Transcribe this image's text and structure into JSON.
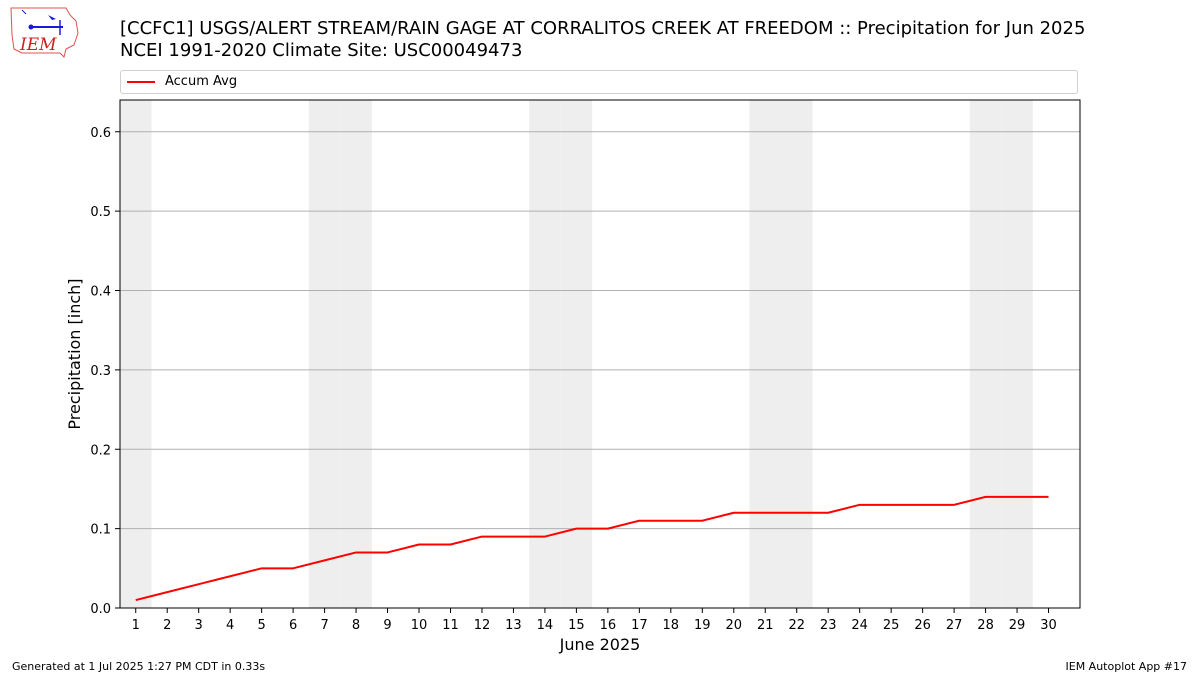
{
  "header": {
    "title_line1": "[CCFC1] USGS/ALERT STREAM/RAIN GAGE  AT CORRALITOS CREEK AT FREEDOM :: Precipitation for Jun 2025",
    "title_line2": "NCEI 1991-2020 Climate Site: USC00049473"
  },
  "logo": {
    "text": "IEM",
    "icon": "iem-logo-icon"
  },
  "footer": {
    "generated": "Generated at 1 Jul 2025 1:27 PM CDT in 0.33s",
    "app": "IEM Autoplot App #17"
  },
  "colors": {
    "line": "#ff0000",
    "weekend_band": "#eeeeee",
    "grid": "#b0b0b0"
  },
  "chart_data": {
    "type": "line",
    "title": "[CCFC1] USGS/ALERT STREAM/RAIN GAGE  AT CORRALITOS CREEK AT FREEDOM :: Precipitation for Jun 2025",
    "subtitle": "NCEI 1991-2020 Climate Site: USC00049473",
    "xlabel": "June 2025",
    "ylabel": "Precipitation [inch]",
    "xlim": [
      0.5,
      31
    ],
    "ylim": [
      0,
      0.64
    ],
    "yticks": [
      0.0,
      0.1,
      0.2,
      0.3,
      0.4,
      0.5,
      0.6
    ],
    "ytick_labels": [
      "0.0",
      "0.1",
      "0.2",
      "0.3",
      "0.4",
      "0.5",
      "0.6"
    ],
    "x": [
      1,
      2,
      3,
      4,
      5,
      6,
      7,
      8,
      9,
      10,
      11,
      12,
      13,
      14,
      15,
      16,
      17,
      18,
      19,
      20,
      21,
      22,
      23,
      24,
      25,
      26,
      27,
      28,
      29,
      30
    ],
    "xtick_labels": [
      "1",
      "2",
      "3",
      "4",
      "5",
      "6",
      "7",
      "8",
      "9",
      "10",
      "11",
      "12",
      "13",
      "14",
      "15",
      "16",
      "17",
      "18",
      "19",
      "20",
      "21",
      "22",
      "23",
      "24",
      "25",
      "26",
      "27",
      "28",
      "29",
      "30"
    ],
    "grid": "y",
    "legend_position": "top",
    "weekend_days": [
      1,
      7,
      8,
      14,
      15,
      21,
      22,
      28,
      29
    ],
    "series": [
      {
        "name": "Accum Avg",
        "values": [
          0.01,
          0.02,
          0.03,
          0.04,
          0.05,
          0.05,
          0.06,
          0.07,
          0.07,
          0.08,
          0.08,
          0.09,
          0.09,
          0.09,
          0.1,
          0.1,
          0.11,
          0.11,
          0.11,
          0.12,
          0.12,
          0.12,
          0.12,
          0.13,
          0.13,
          0.13,
          0.13,
          0.14,
          0.14,
          0.14
        ]
      }
    ]
  }
}
